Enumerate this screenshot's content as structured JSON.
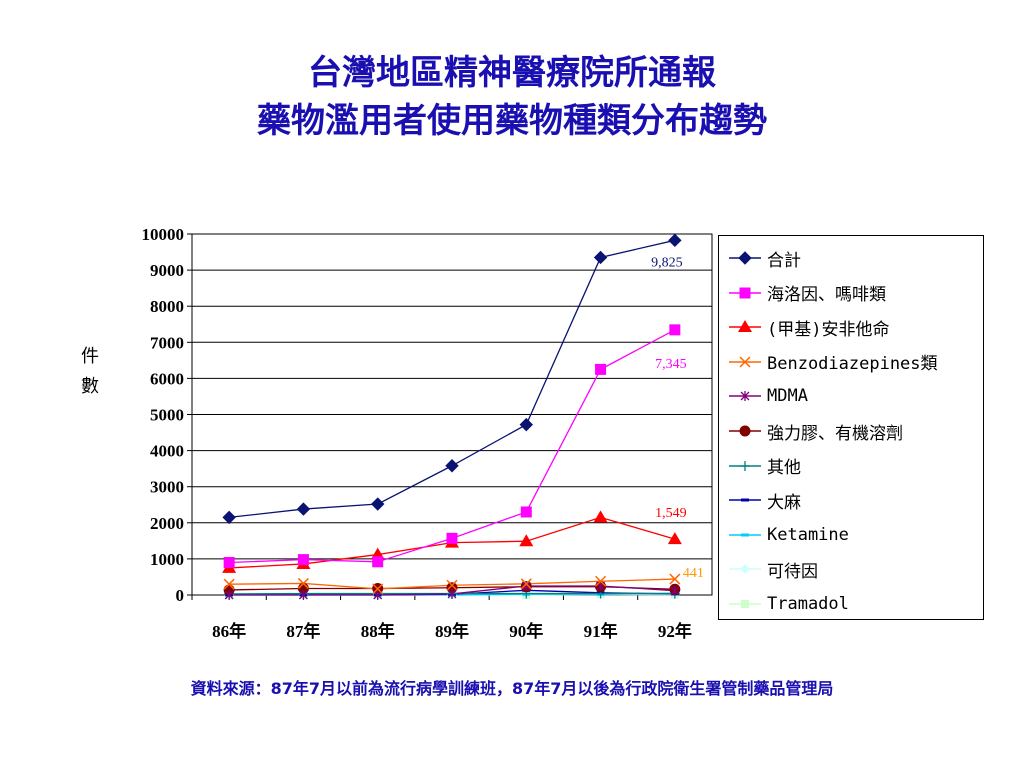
{
  "title_line1": "台灣地區精神醫療院所通報",
  "title_line2": "藥物濫用者使用藥物種類分布趨勢",
  "source_note": "資料來源：87年7月以前為流行病學訓練班，87年7月以後為行政院衛生署管制藥品管理局",
  "chart_data": {
    "type": "line",
    "ylabel": "件數",
    "ylim": [
      0,
      10000
    ],
    "yticks": [
      "0",
      "1000",
      "2000",
      "3000",
      "4000",
      "5000",
      "6000",
      "7000",
      "8000",
      "9000",
      "10000"
    ],
    "categories": [
      "86年",
      "87年",
      "88年",
      "89年",
      "90年",
      "91年",
      "92年"
    ],
    "grid": true,
    "legend_position": "right",
    "series": [
      {
        "name": "合計",
        "color": "#0a1372",
        "marker": "diamond",
        "values": [
          2150,
          2380,
          2520,
          3580,
          4720,
          9350,
          9825
        ]
      },
      {
        "name": "海洛因、嗎啡類",
        "color": "#ff00ff",
        "marker": "square",
        "values": [
          900,
          980,
          920,
          1570,
          2300,
          6250,
          7345
        ]
      },
      {
        "name": "(甲基)安非他命",
        "color": "#ff0000",
        "marker": "triangle",
        "values": [
          750,
          860,
          1120,
          1450,
          1490,
          2150,
          1549
        ]
      },
      {
        "name": "Benzodiazepines類",
        "color": "#ff6600",
        "marker": "x",
        "values": [
          300,
          320,
          170,
          270,
          310,
          380,
          441
        ]
      },
      {
        "name": "MDMA",
        "color": "#800080",
        "marker": "star",
        "values": [
          0,
          0,
          0,
          30,
          250,
          250,
          120
        ]
      },
      {
        "name": "強力膠、有機溶劑",
        "color": "#800000",
        "marker": "circle",
        "values": [
          140,
          180,
          180,
          200,
          230,
          230,
          160
        ]
      },
      {
        "name": "其他",
        "color": "#008080",
        "marker": "plus",
        "values": [
          30,
          40,
          40,
          40,
          40,
          40,
          40
        ]
      },
      {
        "name": "大麻",
        "color": "#0000aa",
        "marker": "dash",
        "values": [
          5,
          5,
          5,
          20,
          130,
          60,
          30
        ]
      },
      {
        "name": "Ketamine",
        "color": "#00ccff",
        "marker": "dash",
        "values": [
          0,
          0,
          0,
          0,
          20,
          20,
          50
        ]
      },
      {
        "name": "可待因",
        "color": "#ccffff",
        "marker": "diamond-small",
        "values": [
          0,
          0,
          0,
          0,
          10,
          10,
          10
        ]
      },
      {
        "name": "Tramadol",
        "color": "#ccffcc",
        "marker": "square-small",
        "values": [
          0,
          0,
          0,
          0,
          0,
          20,
          10
        ]
      }
    ],
    "annotations": [
      {
        "text": "9,825",
        "series": 0,
        "color": "#0a1372"
      },
      {
        "text": "7,345",
        "series": 1,
        "color": "#ff00ff"
      },
      {
        "text": "1,549",
        "series": 2,
        "color": "#ff0000"
      },
      {
        "text": "441",
        "series": 3,
        "color": "#ff9900"
      }
    ]
  }
}
